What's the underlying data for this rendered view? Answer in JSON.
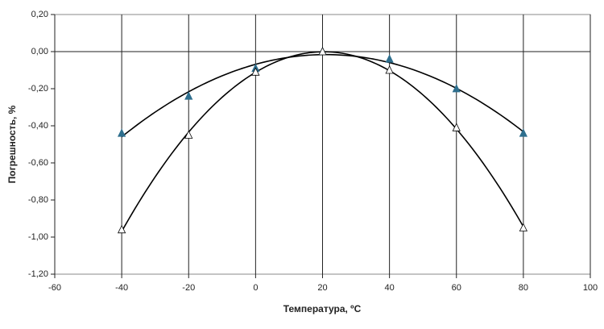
{
  "chart_data": {
    "type": "scatter",
    "x_label": "Температура, ºC",
    "y_label": "Погрешность, %",
    "x": [
      -40,
      -20,
      0,
      20,
      40,
      60,
      80
    ],
    "series": [
      {
        "color": "#2e6f8e",
        "marker": "filled-triangle",
        "trendline": "poly2",
        "values": [
          -0.44,
          -0.24,
          -0.09,
          0.0,
          -0.04,
          -0.2,
          -0.44
        ]
      },
      {
        "color": "#000000",
        "marker": "open-triangle",
        "trendline": "poly2",
        "values": [
          -0.96,
          -0.45,
          -0.11,
          0.0,
          -0.1,
          -0.41,
          -0.95
        ]
      }
    ],
    "xlim": [
      -60,
      100
    ],
    "xticks": [
      -60,
      -40,
      -20,
      0,
      20,
      40,
      60,
      80,
      100
    ],
    "ylim": [
      -1.2,
      0.2
    ],
    "yticks": [
      {
        "value": -1.2,
        "label": "-1,20"
      },
      {
        "value": -1.0,
        "label": "-1,00"
      },
      {
        "value": -0.8,
        "label": "-0,80"
      },
      {
        "value": -0.6,
        "label": "-0,60"
      },
      {
        "value": -0.4,
        "label": "-0,40"
      },
      {
        "value": -0.2,
        "label": "-0,20"
      },
      {
        "value": 0,
        "label": "0,00"
      },
      {
        "value": 0.2,
        "label": "0,20"
      }
    ],
    "grid": "vertical"
  }
}
